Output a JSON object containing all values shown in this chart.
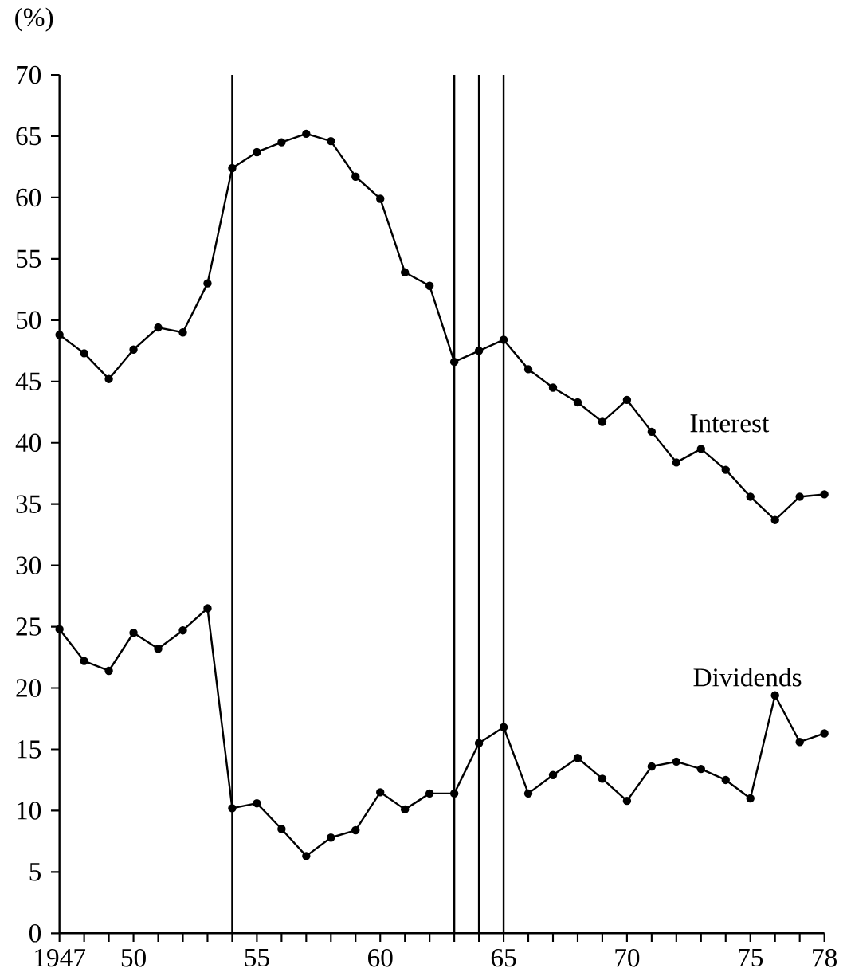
{
  "chart_data": {
    "type": "line",
    "ylabel": "(%)",
    "x": [
      1947,
      1948,
      1949,
      1950,
      1951,
      1952,
      1953,
      1954,
      1955,
      1956,
      1957,
      1958,
      1959,
      1960,
      1961,
      1962,
      1963,
      1964,
      1965,
      1966,
      1967,
      1968,
      1969,
      1970,
      1971,
      1972,
      1973,
      1974,
      1975,
      1976,
      1977,
      1978
    ],
    "series": [
      {
        "name": "Interest",
        "color": "#000000",
        "values": [
          48.8,
          47.3,
          45.2,
          47.6,
          49.4,
          49.0,
          53.0,
          62.4,
          63.7,
          64.5,
          65.2,
          64.6,
          61.7,
          59.9,
          53.9,
          52.8,
          46.6,
          47.5,
          48.4,
          46.0,
          44.5,
          43.3,
          41.7,
          43.5,
          40.9,
          38.4,
          39.5,
          37.8,
          35.6,
          33.7,
          35.6,
          35.8
        ]
      },
      {
        "name": "Dividends",
        "color": "#000000",
        "values": [
          24.8,
          22.2,
          21.4,
          24.5,
          23.2,
          24.7,
          26.5,
          10.2,
          10.6,
          8.5,
          6.3,
          7.8,
          8.4,
          11.5,
          10.1,
          11.4,
          11.4,
          15.5,
          16.8,
          11.4,
          12.9,
          14.3,
          12.6,
          10.8,
          13.6,
          14.0,
          13.4,
          12.5,
          11.0,
          19.4,
          15.6,
          16.3
        ]
      }
    ],
    "xlim": [
      1947,
      1978
    ],
    "ylim": [
      0,
      70
    ],
    "xticks": [
      1947,
      {
        "value": 1948,
        "label": null
      },
      {
        "value": 1949,
        "label": null
      },
      {
        "value": 1950,
        "label": "50"
      },
      {
        "value": 1951,
        "label": null
      },
      {
        "value": 1952,
        "label": null
      },
      {
        "value": 1953,
        "label": null
      },
      {
        "value": 1954,
        "label": null
      },
      {
        "value": 1955,
        "label": "55"
      },
      {
        "value": 1956,
        "label": null
      },
      {
        "value": 1957,
        "label": null
      },
      {
        "value": 1958,
        "label": null
      },
      {
        "value": 1959,
        "label": null
      },
      {
        "value": 1960,
        "label": "60"
      },
      {
        "value": 1961,
        "label": null
      },
      {
        "value": 1962,
        "label": null
      },
      {
        "value": 1963,
        "label": null
      },
      {
        "value": 1964,
        "label": null
      },
      {
        "value": 1965,
        "label": "65"
      },
      {
        "value": 1966,
        "label": null
      },
      {
        "value": 1967,
        "label": null
      },
      {
        "value": 1968,
        "label": null
      },
      {
        "value": 1969,
        "label": null
      },
      {
        "value": 1970,
        "label": "70"
      },
      {
        "value": 1971,
        "label": null
      },
      {
        "value": 1972,
        "label": null
      },
      {
        "value": 1973,
        "label": null
      },
      {
        "value": 1974,
        "label": null
      },
      {
        "value": 1975,
        "label": "75"
      },
      {
        "value": 1976,
        "label": null
      },
      {
        "value": 1977,
        "label": null
      },
      {
        "value": 1978,
        "label": "78"
      }
    ],
    "yticks": [
      0,
      5,
      10,
      15,
      20,
      25,
      30,
      35,
      40,
      45,
      50,
      55,
      60,
      65,
      70
    ],
    "ref_lines": [
      {
        "axis": "x",
        "value": 1954,
        "color": "#000000"
      },
      {
        "axis": "x",
        "value": 1963,
        "color": "#000000"
      },
      {
        "axis": "x",
        "value": 1964,
        "color": "#000000"
      },
      {
        "axis": "x",
        "value": 1965,
        "color": "#000000"
      }
    ],
    "marker": "circle",
    "line_style": "solid",
    "grid": false
  }
}
